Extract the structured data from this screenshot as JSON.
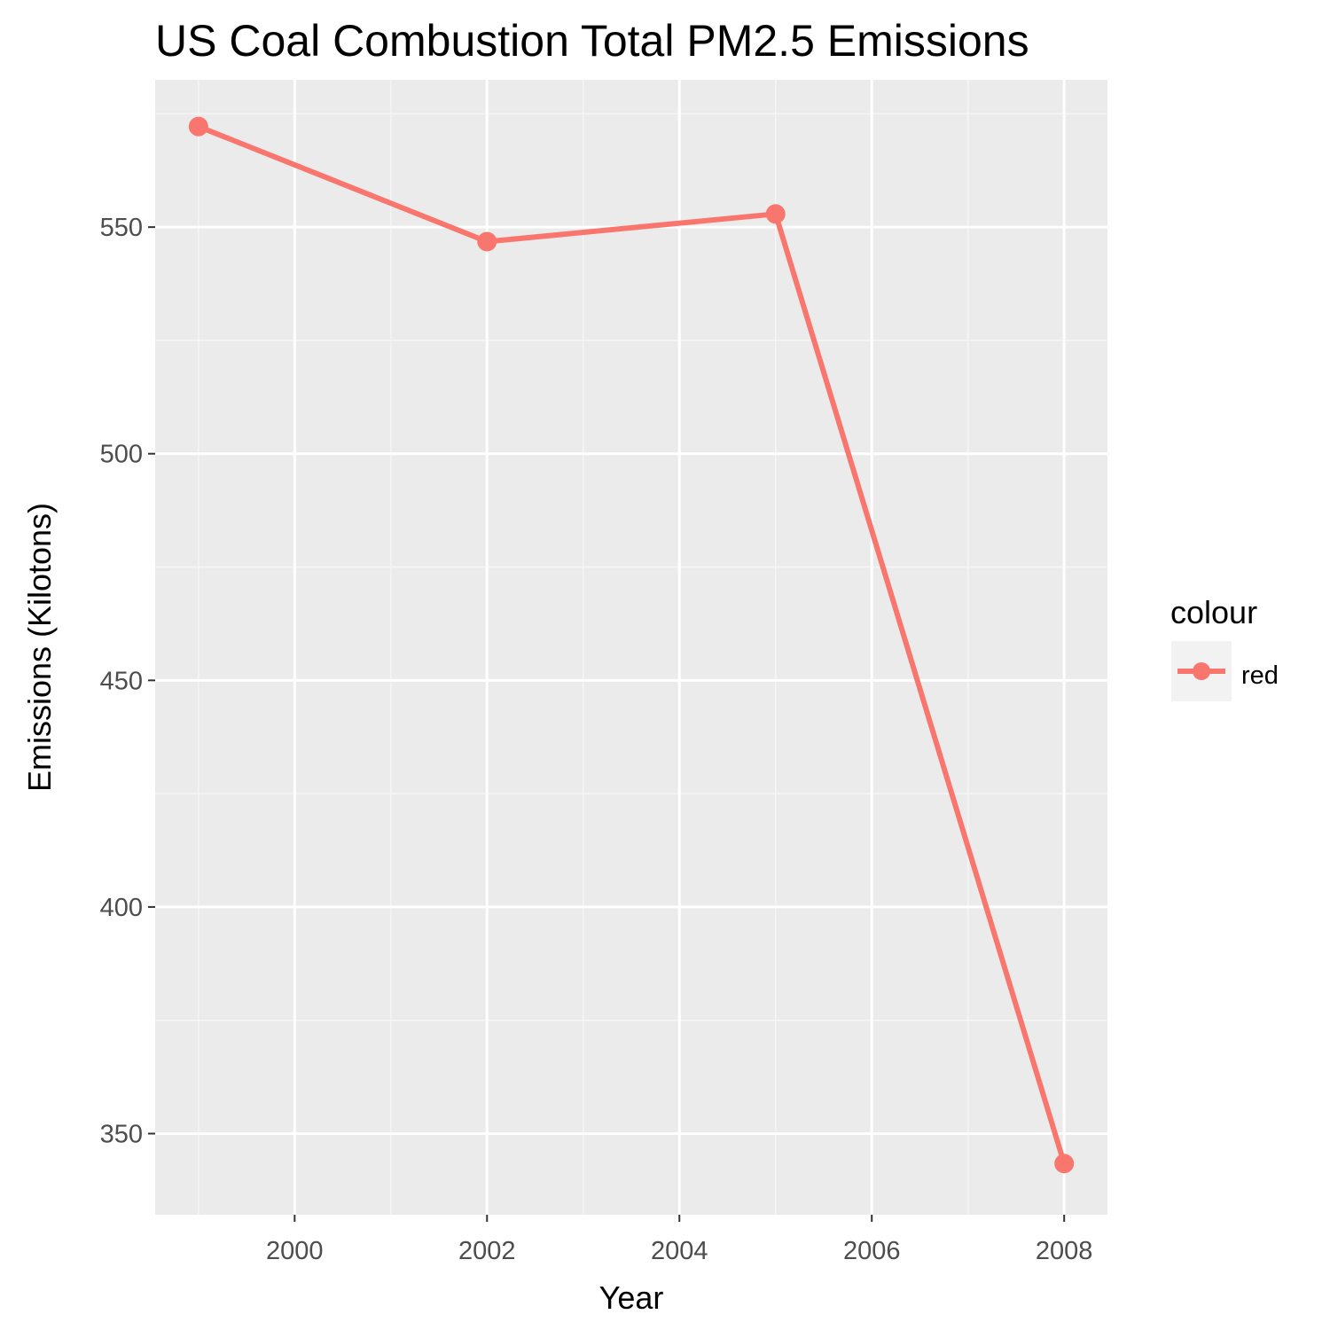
{
  "chart_data": {
    "type": "line",
    "title": "US Coal Combustion Total PM2.5 Emissions",
    "xlabel": "Year",
    "ylabel": "Emissions (Kilotons)",
    "x_ticks": [
      2000,
      2002,
      2004,
      2006,
      2008
    ],
    "y_ticks": [
      350,
      400,
      450,
      500,
      550
    ],
    "xlim": [
      1998.55,
      2008.45
    ],
    "ylim": [
      332.1,
      582.5
    ],
    "grid": true,
    "legend": {
      "title": "colour",
      "position": "right",
      "entries": [
        "red"
      ]
    },
    "series": [
      {
        "name": "red",
        "color": "#F8766D",
        "x": [
          1999,
          2002,
          2005,
          2008
        ],
        "y": [
          572.2,
          546.8,
          552.9,
          343.4
        ]
      }
    ],
    "colors": {
      "panel_background": "#EBEBEB",
      "grid_major": "#FFFFFF",
      "grid_minor": "#F5F5F5",
      "series": "#F8766D"
    }
  }
}
